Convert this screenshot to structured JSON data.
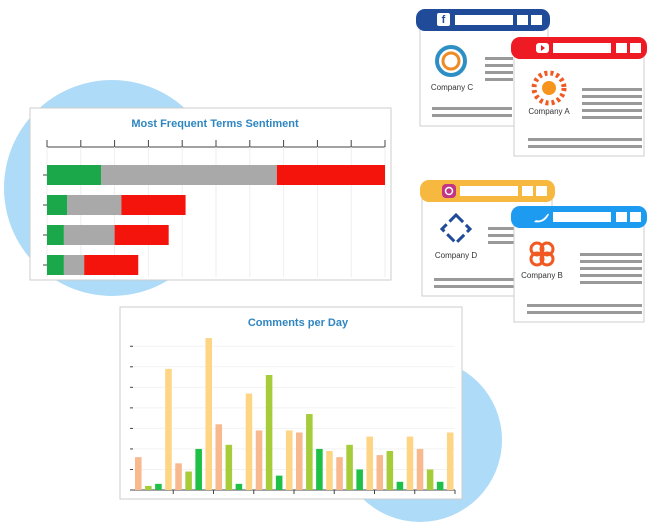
{
  "chart_data": [
    {
      "type": "hbar_stacked",
      "title": "Most Frequent Terms Sentiment",
      "categories": [
        null,
        null,
        null,
        null
      ],
      "series": [
        {
          "color": "#1aa84a",
          "values": [
            16,
            6,
            5,
            5
          ]
        },
        {
          "color": "#a9a9a9",
          "values": [
            52,
            16,
            15,
            6
          ]
        },
        {
          "color": "#f4140c",
          "values": [
            32,
            19,
            16,
            16
          ]
        }
      ],
      "xlim": [
        0,
        100
      ],
      "xticks": [
        0,
        10,
        20,
        30,
        40,
        50,
        60,
        70,
        80,
        90,
        100
      ],
      "grid": true
    },
    {
      "type": "bar",
      "title": "Comments per Day",
      "categories": [
        null,
        null,
        null,
        null,
        null,
        null,
        null,
        null
      ],
      "series": [
        {
          "color": "#f7b98d",
          "values": [
            1.6,
            1.3,
            3.2,
            2.9,
            2.8,
            1.6,
            1.7,
            2.0
          ]
        },
        {
          "color": "#a6cc3a",
          "values": [
            0.2,
            0.9,
            2.2,
            5.6,
            3.7,
            2.2,
            1.9,
            1.0
          ]
        },
        {
          "color": "#1fc046",
          "values": [
            0.3,
            2.0,
            0.3,
            0.7,
            2.0,
            1.0,
            0.4,
            0.4
          ]
        },
        {
          "color": "#fed584",
          "values": [
            5.9,
            7.4,
            4.7,
            2.9,
            1.9,
            2.6,
            2.6,
            2.8
          ]
        }
      ],
      "ylim": [
        0,
        7.5
      ],
      "yticks": [
        0,
        1,
        2,
        3,
        4,
        5,
        6,
        7
      ],
      "grid": true
    }
  ],
  "windows": [
    {
      "label": "Company C"
    },
    {
      "label": "Company A"
    },
    {
      "label": "Company D"
    },
    {
      "label": "Company B"
    }
  ]
}
